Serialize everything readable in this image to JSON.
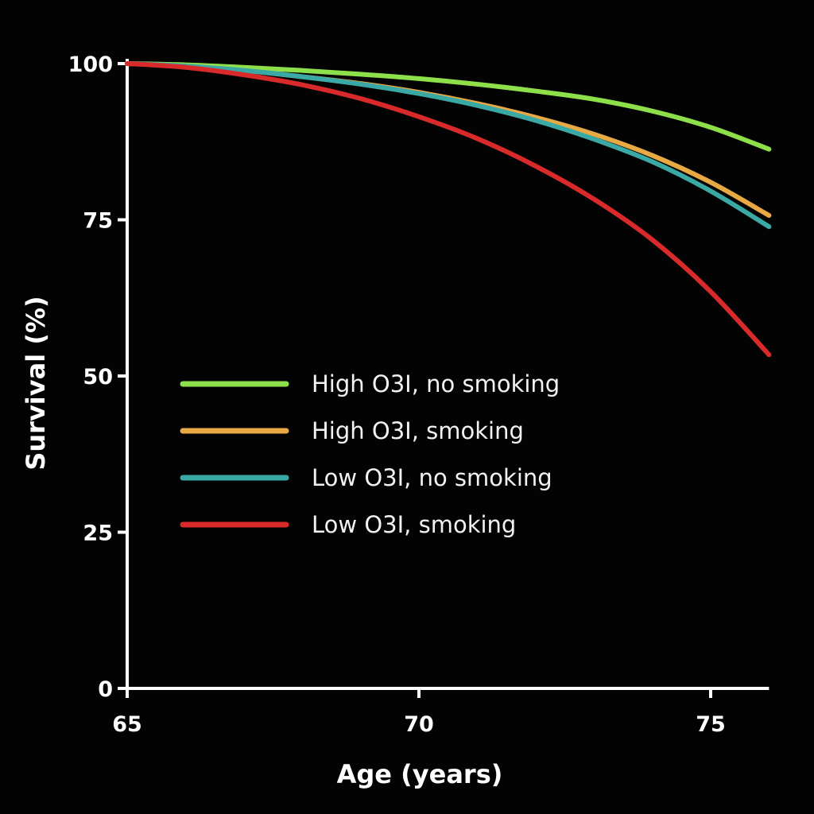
{
  "chart_data": {
    "type": "line",
    "title": "",
    "xlabel": "Age (years)",
    "ylabel": "Survival (%)",
    "xlim": [
      65,
      76
    ],
    "ylim": [
      0,
      100
    ],
    "x_ticks": [
      "65",
      "70",
      "75"
    ],
    "y_ticks": [
      "0",
      "25",
      "50",
      "75",
      "100"
    ],
    "x_tick_values": [
      65,
      70,
      75
    ],
    "y_tick_values": [
      0,
      25,
      50,
      75,
      100
    ],
    "grid": false,
    "legend_position": "center-left",
    "x": [
      65,
      66,
      67,
      68,
      69,
      70,
      71,
      72,
      73,
      74,
      75,
      76
    ],
    "series": [
      {
        "name": "High O3I, no smoking",
        "color": "#8ee04a",
        "values": [
          100,
          99.8,
          99.4,
          98.9,
          98.3,
          97.6,
          96.7,
          95.6,
          94.3,
          92.4,
          89.8,
          86.3
        ]
      },
      {
        "name": "High O3I, smoking",
        "color": "#e8a944",
        "values": [
          100,
          99.6,
          98.9,
          97.9,
          96.8,
          95.4,
          93.6,
          91.4,
          88.7,
          85.3,
          81.0,
          75.7
        ]
      },
      {
        "name": "Low O3I, no smoking",
        "color": "#3aa8a4",
        "values": [
          100,
          99.6,
          98.9,
          97.9,
          96.7,
          95.2,
          93.3,
          90.9,
          87.9,
          84.3,
          79.6,
          73.9
        ]
      },
      {
        "name": "Low O3I, smoking",
        "color": "#d82a2a",
        "values": [
          100,
          99.4,
          98.2,
          96.6,
          94.4,
          91.5,
          88.0,
          83.6,
          78.3,
          71.8,
          63.5,
          53.4
        ]
      }
    ]
  }
}
